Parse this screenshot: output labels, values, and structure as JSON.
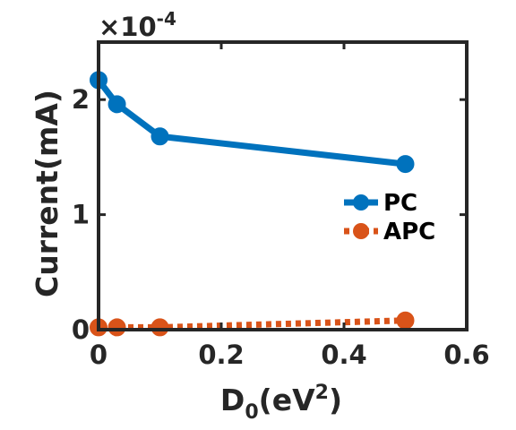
{
  "chart_data": {
    "type": "line",
    "xlabel": {
      "base": "D",
      "sub": "0",
      "paren_open": "(eV",
      "sup": "2",
      "paren_close": ")"
    },
    "ylabel": "Current(mA)",
    "y_multiplier": {
      "prefix": "×10",
      "exp": "-4"
    },
    "xlim": [
      0,
      0.6
    ],
    "ylim": [
      0,
      2.5
    ],
    "x_ticks": [
      0,
      0.2,
      0.4,
      0.6
    ],
    "x_tick_labels": [
      "0",
      "0.2",
      "0.4",
      "0.6"
    ],
    "y_ticks": [
      0,
      1,
      2
    ],
    "y_tick_labels": [
      "0",
      "1",
      "2"
    ],
    "grid": false,
    "legend_position": "right",
    "series": [
      {
        "name": "PC",
        "color": "#0072BD",
        "line": "solid",
        "marker": "circle",
        "x": [
          0,
          0.03,
          0.1,
          0.5
        ],
        "y": [
          2.17,
          1.96,
          1.68,
          1.44
        ]
      },
      {
        "name": "APC",
        "color": "#D95319",
        "line": "dotted",
        "marker": "circle",
        "x": [
          0,
          0.03,
          0.1,
          0.5
        ],
        "y": [
          0.02,
          0.02,
          0.02,
          0.08
        ]
      }
    ]
  }
}
